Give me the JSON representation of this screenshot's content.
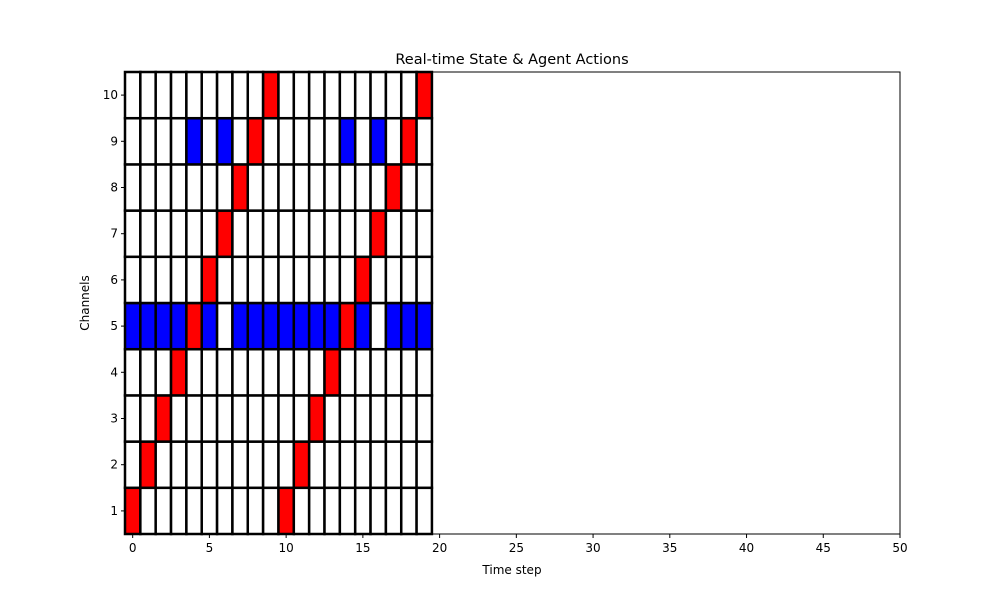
{
  "chart_data": {
    "type": "heatmap",
    "title": "Real-time State & Agent Actions",
    "xlabel": "Time step",
    "ylabel": "Channels",
    "xlim": [
      -0.5,
      50
    ],
    "ylim": [
      0.5,
      10.5
    ],
    "xticks": [
      0,
      5,
      10,
      15,
      20,
      25,
      30,
      35,
      40,
      45,
      50
    ],
    "yticks": [
      1,
      2,
      3,
      4,
      5,
      6,
      7,
      8,
      9,
      10
    ],
    "time_steps": 20,
    "channels": 10,
    "colors": {
      "empty": "#ffffff",
      "agent_action": "#ff0000",
      "occupied": "#0000ff",
      "edge": "#000000"
    },
    "agent_action_channel_by_step": [
      1,
      2,
      3,
      4,
      5,
      6,
      7,
      8,
      9,
      10,
      1,
      2,
      3,
      4,
      5,
      6,
      7,
      8,
      9,
      10
    ],
    "occupied_cells": {
      "5": [
        0,
        1,
        2,
        3,
        5,
        7,
        8,
        9,
        10,
        11,
        12,
        13,
        15,
        17,
        18,
        19
      ],
      "9": [
        4,
        6,
        14,
        16
      ]
    }
  }
}
